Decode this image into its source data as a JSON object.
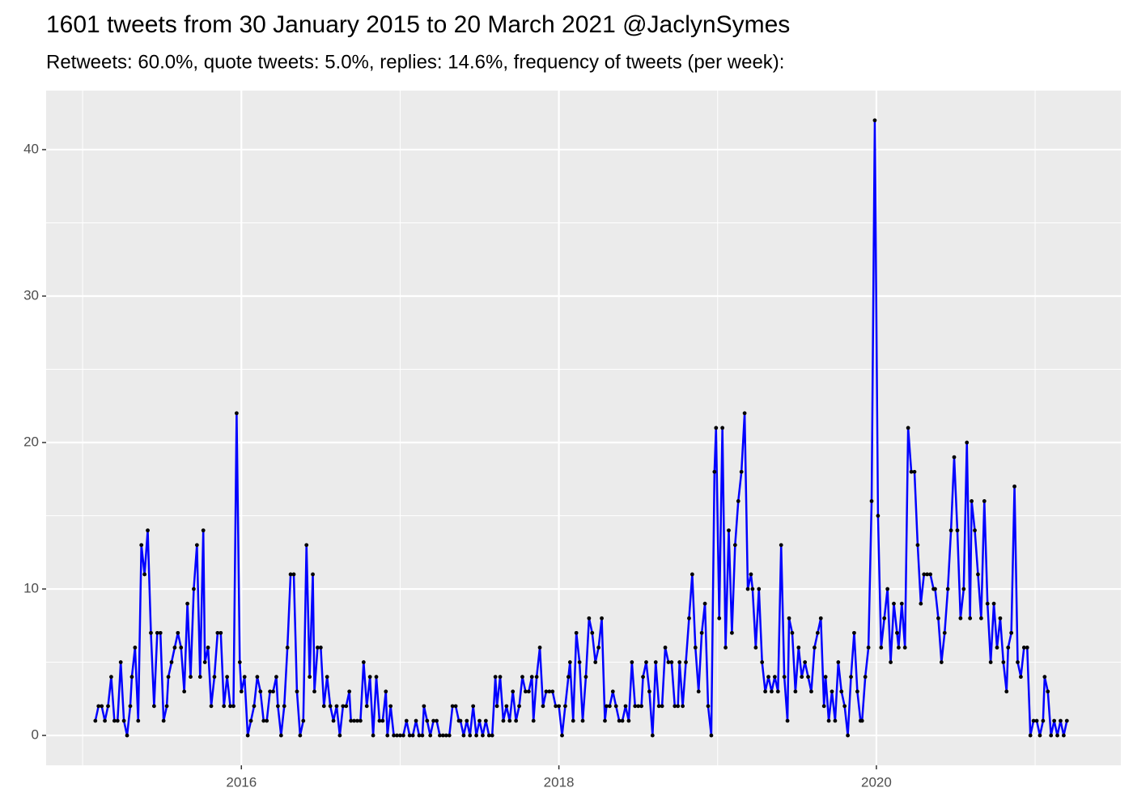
{
  "chart_data": {
    "type": "line",
    "title": "1601 tweets from 30 January 2015 to 20 March 2021 @JaclynSymes",
    "subtitle": "Retweets: 60.0%, quote tweets: 5.0%, replies: 14.6%, frequency of tweets (per week):",
    "x": [
      2015.08,
      2015.1,
      2015.12,
      2015.14,
      2015.16,
      2015.18,
      2015.2,
      2015.22,
      2015.24,
      2015.26,
      2015.28,
      2015.3,
      2015.31,
      2015.33,
      2015.35,
      2015.37,
      2015.39,
      2015.41,
      2015.43,
      2015.45,
      2015.47,
      2015.49,
      2015.51,
      2015.53,
      2015.54,
      2015.56,
      2015.58,
      2015.6,
      2015.62,
      2015.64,
      2015.66,
      2015.68,
      2015.7,
      2015.72,
      2015.74,
      2015.76,
      2015.77,
      2015.79,
      2015.81,
      2015.83,
      2015.85,
      2015.87,
      2015.89,
      2015.91,
      2015.93,
      2015.95,
      2015.97,
      2015.99,
      2016.0,
      2016.02,
      2016.04,
      2016.06,
      2016.08,
      2016.1,
      2016.12,
      2016.14,
      2016.16,
      2016.18,
      2016.2,
      2016.22,
      2016.23,
      2016.25,
      2016.27,
      2016.29,
      2016.31,
      2016.33,
      2016.35,
      2016.37,
      2016.39,
      2016.41,
      2016.43,
      2016.45,
      2016.46,
      2016.48,
      2016.5,
      2016.52,
      2016.54,
      2016.56,
      2016.58,
      2016.6,
      2016.62,
      2016.64,
      2016.66,
      2016.68,
      2016.69,
      2016.71,
      2016.73,
      2016.75,
      2016.77,
      2016.79,
      2016.81,
      2016.83,
      2016.85,
      2016.87,
      2016.89,
      2016.91,
      2016.92,
      2016.94,
      2016.96,
      2016.98,
      2017.0,
      2017.02,
      2017.04,
      2017.06,
      2017.08,
      2017.1,
      2017.12,
      2017.14,
      2017.15,
      2017.17,
      2017.19,
      2017.21,
      2017.23,
      2017.25,
      2017.27,
      2017.29,
      2017.31,
      2017.33,
      2017.35,
      2017.37,
      2017.38,
      2017.4,
      2017.42,
      2017.44,
      2017.46,
      2017.48,
      2017.5,
      2017.52,
      2017.54,
      2017.56,
      2017.58,
      2017.6,
      2017.61,
      2017.63,
      2017.65,
      2017.67,
      2017.69,
      2017.71,
      2017.73,
      2017.75,
      2017.77,
      2017.79,
      2017.81,
      2017.83,
      2017.84,
      2017.86,
      2017.88,
      2017.9,
      2017.92,
      2017.94,
      2017.96,
      2017.98,
      2018.0,
      2018.02,
      2018.04,
      2018.06,
      2018.07,
      2018.09,
      2018.11,
      2018.13,
      2018.15,
      2018.17,
      2018.19,
      2018.21,
      2018.23,
      2018.25,
      2018.27,
      2018.29,
      2018.3,
      2018.32,
      2018.34,
      2018.36,
      2018.38,
      2018.4,
      2018.42,
      2018.44,
      2018.46,
      2018.48,
      2018.5,
      2018.52,
      2018.53,
      2018.55,
      2018.57,
      2018.59,
      2018.61,
      2018.63,
      2018.65,
      2018.67,
      2018.69,
      2018.71,
      2018.73,
      2018.75,
      2018.76,
      2018.78,
      2018.8,
      2018.82,
      2018.84,
      2018.86,
      2018.88,
      2018.9,
      2018.92,
      2018.94,
      2018.96,
      2018.98,
      2018.99,
      2019.01,
      2019.03,
      2019.05,
      2019.07,
      2019.09,
      2019.11,
      2019.13,
      2019.15,
      2019.17,
      2019.19,
      2019.21,
      2019.22,
      2019.24,
      2019.26,
      2019.28,
      2019.3,
      2019.32,
      2019.34,
      2019.36,
      2019.38,
      2019.4,
      2019.42,
      2019.44,
      2019.45,
      2019.47,
      2019.49,
      2019.51,
      2019.53,
      2019.55,
      2019.57,
      2019.59,
      2019.61,
      2019.63,
      2019.65,
      2019.67,
      2019.68,
      2019.7,
      2019.72,
      2019.74,
      2019.76,
      2019.78,
      2019.8,
      2019.82,
      2019.84,
      2019.86,
      2019.88,
      2019.9,
      2019.91,
      2019.93,
      2019.95,
      2019.97,
      2019.99,
      2020.01,
      2020.03,
      2020.05,
      2020.07,
      2020.09,
      2020.11,
      2020.13,
      2020.14,
      2020.16,
      2020.18,
      2020.2,
      2020.22,
      2020.24,
      2020.26,
      2020.28,
      2020.3,
      2020.32,
      2020.34,
      2020.36,
      2020.37,
      2020.39,
      2020.41,
      2020.43,
      2020.45,
      2020.47,
      2020.49,
      2020.51,
      2020.53,
      2020.55,
      2020.57,
      2020.59,
      2020.6,
      2020.62,
      2020.64,
      2020.66,
      2020.68,
      2020.7,
      2020.72,
      2020.74,
      2020.76,
      2020.78,
      2020.8,
      2020.82,
      2020.83,
      2020.85,
      2020.87,
      2020.89,
      2020.91,
      2020.93,
      2020.95,
      2020.97,
      2020.99,
      2021.01,
      2021.03,
      2021.05,
      2021.06,
      2021.08,
      2021.1,
      2021.12,
      2021.14,
      2021.16,
      2021.18,
      2021.2
    ],
    "values": [
      1,
      2,
      2,
      1,
      2,
      4,
      1,
      1,
      5,
      1,
      0,
      2,
      4,
      6,
      1,
      13,
      11,
      14,
      7,
      2,
      7,
      7,
      1,
      2,
      4,
      5,
      6,
      7,
      6,
      3,
      9,
      4,
      10,
      13,
      4,
      14,
      5,
      6,
      2,
      4,
      7,
      7,
      2,
      4,
      2,
      2,
      22,
      5,
      3,
      4,
      0,
      1,
      2,
      4,
      3,
      1,
      1,
      3,
      3,
      4,
      2,
      0,
      2,
      6,
      11,
      11,
      3,
      0,
      1,
      13,
      4,
      11,
      3,
      6,
      6,
      2,
      4,
      2,
      1,
      2,
      0,
      2,
      2,
      3,
      1,
      1,
      1,
      1,
      5,
      2,
      4,
      0,
      4,
      1,
      1,
      3,
      0,
      2,
      0,
      0,
      0,
      0,
      1,
      0,
      0,
      1,
      0,
      0,
      2,
      1,
      0,
      1,
      1,
      0,
      0,
      0,
      0,
      2,
      2,
      1,
      1,
      0,
      1,
      0,
      2,
      0,
      1,
      0,
      1,
      0,
      0,
      4,
      2,
      4,
      1,
      2,
      1,
      3,
      1,
      2,
      4,
      3,
      3,
      4,
      1,
      4,
      6,
      2,
      3,
      3,
      3,
      2,
      2,
      0,
      2,
      4,
      5,
      1,
      7,
      5,
      1,
      4,
      8,
      7,
      5,
      6,
      8,
      1,
      2,
      2,
      3,
      2,
      1,
      1,
      2,
      1,
      5,
      2,
      2,
      2,
      4,
      5,
      3,
      0,
      5,
      2,
      2,
      6,
      5,
      5,
      2,
      2,
      5,
      2,
      5,
      8,
      11,
      6,
      3,
      7,
      9,
      2,
      0,
      18,
      21,
      8,
      21,
      6,
      14,
      7,
      13,
      16,
      18,
      22,
      10,
      11,
      10,
      6,
      10,
      5,
      3,
      4,
      3,
      4,
      3,
      13,
      4,
      1,
      8,
      7,
      3,
      6,
      4,
      5,
      4,
      3,
      6,
      7,
      8,
      2,
      4,
      1,
      3,
      1,
      5,
      3,
      2,
      0,
      4,
      7,
      3,
      1,
      1,
      4,
      6,
      16,
      42,
      15,
      6,
      8,
      10,
      5,
      9,
      7,
      6,
      9,
      6,
      21,
      18,
      18,
      13,
      9,
      11,
      11,
      11,
      10,
      10,
      8,
      5,
      7,
      10,
      14,
      19,
      14,
      8,
      10,
      20,
      8,
      16,
      14,
      11,
      8,
      16,
      9,
      5,
      9,
      6,
      8,
      5,
      3,
      6,
      7,
      17,
      5,
      4,
      6,
      6,
      0,
      1,
      1,
      0,
      1,
      4,
      3,
      0,
      1,
      0,
      1,
      0,
      1
    ],
    "color": "#0000ff",
    "point_color": "#000000",
    "xlim": [
      2014.77,
      2021.54
    ],
    "xticks": [
      2016,
      2018,
      2020
    ],
    "ylim": [
      -2.04,
      44.03
    ],
    "yticks": [
      0,
      10,
      20,
      30,
      40
    ],
    "grid": true
  }
}
